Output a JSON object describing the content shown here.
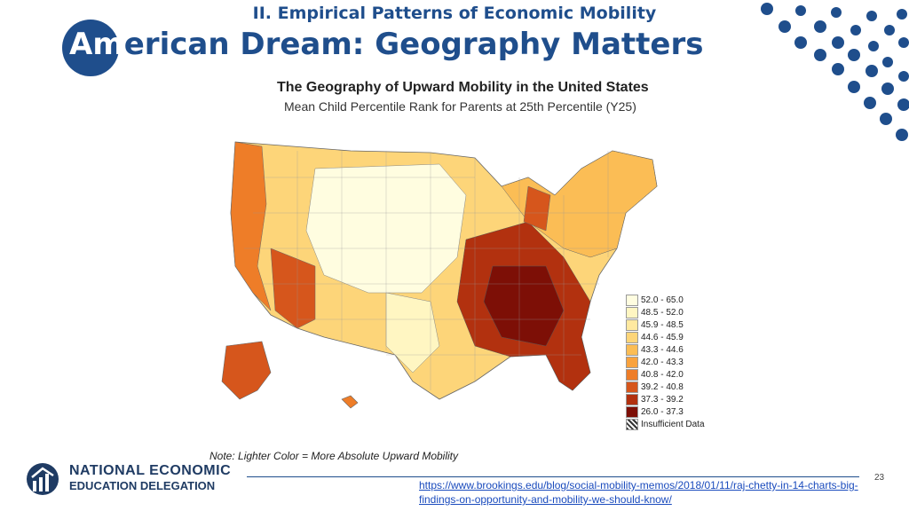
{
  "slide": {
    "section_title": "II. Empirical Patterns of Economic Mobility",
    "title_lead": "Am",
    "title_rest": "erican Dream: Geography Matters",
    "page_number": "23"
  },
  "figure": {
    "title": "The Geography of Upward Mobility in the United States",
    "subtitle": "Mean Child Percentile Rank for Parents at 25th Percentile (Y25)",
    "note": "Note: Lighter Color = More Absolute Upward Mobility",
    "legend": [
      {
        "label": "52.0 - 65.0",
        "color": "#fffde0"
      },
      {
        "label": "48.5 - 52.0",
        "color": "#fff6c2"
      },
      {
        "label": "45.9 - 48.5",
        "color": "#ffe9a0"
      },
      {
        "label": "44.6 - 45.9",
        "color": "#fdd579"
      },
      {
        "label": "43.3 - 44.6",
        "color": "#fbbd55"
      },
      {
        "label": "42.0 - 43.3",
        "color": "#f9a23d"
      },
      {
        "label": "40.8 - 42.0",
        "color": "#ee7d28"
      },
      {
        "label": "39.2 - 40.8",
        "color": "#d6561c"
      },
      {
        "label": "37.3 - 39.2",
        "color": "#b2310f"
      },
      {
        "label": "26.0 - 37.3",
        "color": "#7d0f06"
      },
      {
        "label": "Insufficient Data",
        "color": "#dddddd"
      }
    ]
  },
  "logo": {
    "line1": "NATIONAL ECONOMIC",
    "line2": "EDUCATION DELEGATION"
  },
  "source": {
    "url": "https://www.brookings.edu/blog/social-mobility-memos/2018/01/11/raj-chetty-in-14-charts-big-findings-on-opportunity-and-mobility-we-should-know/"
  },
  "colors": {
    "brand_blue": "#1f4e8c"
  }
}
